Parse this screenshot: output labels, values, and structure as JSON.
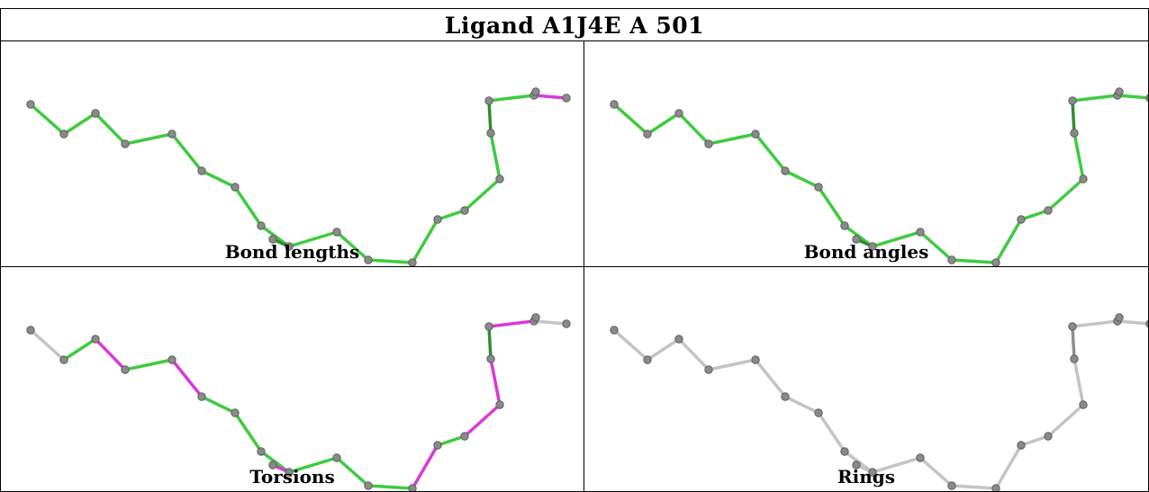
{
  "title": "Ligand A1J4E A 501",
  "panels": [
    {
      "label": "Bond lengths",
      "scheme": "lengths"
    },
    {
      "label": "Bond angles",
      "scheme": "angles"
    },
    {
      "label": "Torsions",
      "scheme": "torsions"
    },
    {
      "label": "Rings",
      "scheme": "rings"
    }
  ],
  "colors": {
    "good": "#3ecb3e",
    "dark_good": "#2f8f2f",
    "outlier": "#d83ad8",
    "neutral": "#c4c4c4",
    "atom": "#8a8a8a",
    "border": "#000000"
  }
}
